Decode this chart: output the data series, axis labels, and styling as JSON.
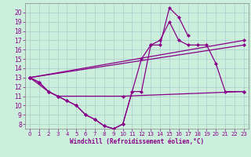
{
  "xlabel": "Windchill (Refroidissement éolien,°C)",
  "xlim": [
    -0.5,
    23.5
  ],
  "ylim": [
    7.5,
    21
  ],
  "yticks": [
    8,
    9,
    10,
    11,
    12,
    13,
    14,
    15,
    16,
    17,
    18,
    19,
    20
  ],
  "xticks": [
    0,
    1,
    2,
    3,
    4,
    5,
    6,
    7,
    8,
    9,
    10,
    11,
    12,
    13,
    14,
    15,
    16,
    17,
    18,
    19,
    20,
    21,
    22,
    23
  ],
  "background_color": "#cceedd",
  "grid_color": "#aacccc",
  "line_color": "#880088",
  "line_width": 0.9,
  "marker": "D",
  "marker_size": 2.5,
  "line1_x": [
    0,
    1,
    2,
    3,
    4,
    5,
    6,
    7,
    8,
    9,
    10,
    11,
    12,
    13,
    14,
    15,
    16,
    17
  ],
  "line1_y": [
    13,
    12.5,
    11.5,
    11.0,
    10.5,
    10.0,
    9.0,
    8.5,
    7.8,
    7.5,
    8.0,
    11.5,
    11.5,
    16.5,
    16.5,
    20.5,
    19.5,
    17.5
  ],
  "line2_x": [
    0,
    1,
    2,
    3,
    4,
    5,
    6,
    7,
    8,
    9,
    10,
    11,
    12,
    13,
    14,
    15,
    16,
    17,
    18,
    19,
    20,
    21,
    23
  ],
  "line2_y": [
    13,
    12.5,
    11.5,
    11.0,
    10.5,
    10.0,
    9.0,
    8.5,
    7.8,
    7.5,
    8.0,
    11.5,
    15.0,
    16.5,
    17.0,
    19.0,
    17.0,
    16.5,
    16.5,
    16.5,
    14.5,
    11.5,
    11.5
  ],
  "line3_x": [
    0,
    2,
    3,
    10,
    23
  ],
  "line3_y": [
    13,
    11.5,
    11.0,
    11.0,
    11.5
  ],
  "line4_x": [
    0,
    23
  ],
  "line4_y": [
    13,
    17.0
  ],
  "line5_x": [
    0,
    23
  ],
  "line5_y": [
    13,
    16.5
  ]
}
